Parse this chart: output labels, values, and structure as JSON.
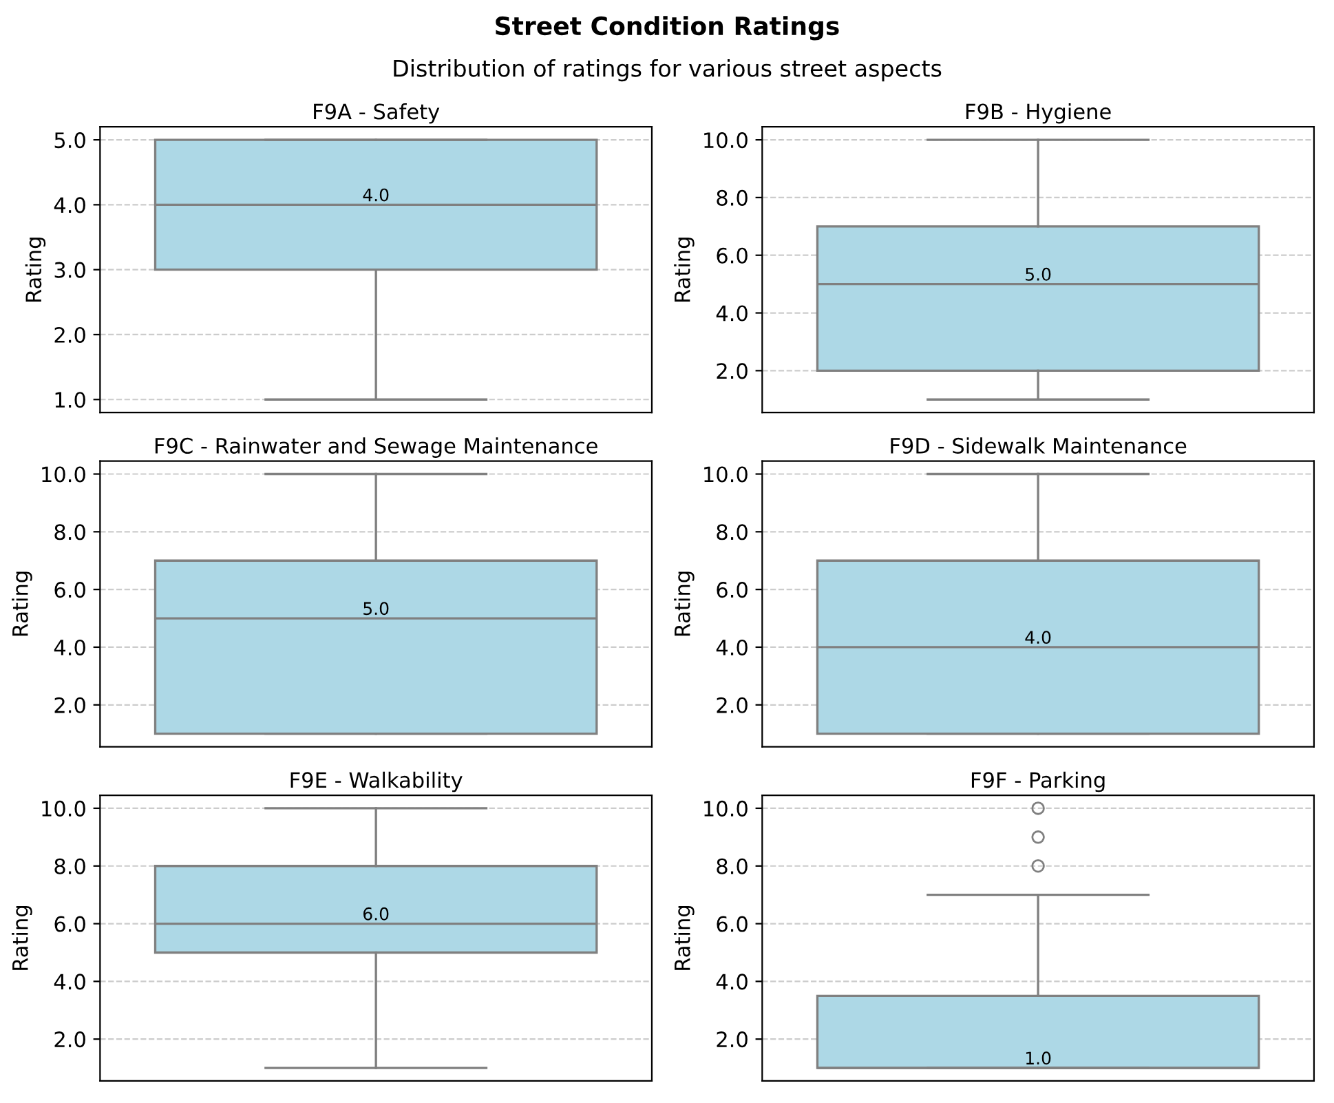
{
  "chart_data": [
    {
      "type": "box",
      "title": "F9A - Safety",
      "ylabel": "Rating",
      "categories": [
        null
      ],
      "color": "#add8e6",
      "boxes": [
        {
          "low": 1,
          "q1": 3,
          "median": 4,
          "q3": 5,
          "high": 5
        }
      ],
      "ylim": [
        0.8,
        5.2
      ],
      "yticks": [
        {
          "value": 1,
          "label": "1.0"
        },
        {
          "value": 2,
          "label": "2.0"
        },
        {
          "value": 3,
          "label": "3.0"
        },
        {
          "value": 4,
          "label": "4.0"
        },
        {
          "value": 5,
          "label": "5.0"
        }
      ],
      "grid": "y",
      "tick_labels": "y",
      "annotations": [
        {
          "text": "4.0",
          "y": 4
        }
      ]
    },
    {
      "type": "box",
      "title": "F9C - Rainwater and Sewage Maintenance",
      "ylabel": "Rating",
      "categories": [
        null
      ],
      "color": "#add8e6",
      "boxes": [
        {
          "low": 1,
          "q1": 1,
          "median": 5,
          "q3": 7,
          "high": 10
        }
      ],
      "ylim": [
        0.55,
        10.45
      ],
      "yticks": [
        {
          "value": 2,
          "label": "2.0"
        },
        {
          "value": 4,
          "label": "4.0"
        },
        {
          "value": 6,
          "label": "6.0"
        },
        {
          "value": 8,
          "label": "8.0"
        },
        {
          "value": 10,
          "label": "10.0"
        }
      ],
      "grid": "y",
      "tick_labels": "y",
      "annotations": [
        {
          "text": "5.0",
          "y": 5
        }
      ]
    },
    {
      "type": "box",
      "title": "F9E - Walkability",
      "ylabel": "Rating",
      "categories": [
        null
      ],
      "color": "#add8e6",
      "boxes": [
        {
          "low": 1,
          "q1": 5,
          "median": 6,
          "q3": 8,
          "high": 10
        }
      ],
      "ylim": [
        0.55,
        10.45
      ],
      "yticks": [
        {
          "value": 2,
          "label": "2.0"
        },
        {
          "value": 4,
          "label": "4.0"
        },
        {
          "value": 6,
          "label": "6.0"
        },
        {
          "value": 8,
          "label": "8.0"
        },
        {
          "value": 10,
          "label": "10.0"
        }
      ],
      "grid": "y",
      "tick_labels": "y",
      "annotations": [
        "6.0"
      ]
    },
    {
      "type": "box",
      "title": "F9B - Hygiene",
      "ylabel": "Rating",
      "categories": [
        null
      ],
      "color": "#add8e6",
      "boxes": [
        {
          "low": 1,
          "q1": 2,
          "median": 5,
          "q3": 7,
          "high": 10
        }
      ],
      "ylim": [
        0.55,
        10.45
      ],
      "yticks": [
        {
          "value": 2,
          "label": "2.0"
        },
        {
          "value": 4,
          "label": "4.0"
        },
        {
          "value": 6,
          "label": "6.0"
        },
        {
          "value": 8,
          "label": "8.0"
        },
        {
          "value": 10,
          "label": "10.0"
        }
      ],
      "grid": "y",
      "tick_labels": "y",
      "annotations": [
        {
          "text": "5.0",
          "y": 5
        }
      ]
    },
    {
      "type": "box",
      "title": "F9D - Sidewalk Maintenance",
      "ylabel": "Rating",
      "categories": [
        null
      ],
      "color": "#add8e6",
      "boxes": [
        {
          "low": 1,
          "q1": 1,
          "median": 4,
          "q3": 7,
          "high": 10
        }
      ],
      "ylim": [
        0.55,
        10.45
      ],
      "yticks": [
        {
          "value": 2,
          "label": "2.0"
        },
        {
          "value": 4,
          "label": "4.0"
        },
        {
          "value": 6,
          "label": "6.0"
        },
        {
          "value": 8,
          "label": "8.0"
        },
        {
          "value": 10,
          "label": "10.0"
        }
      ],
      "grid": "y",
      "tick_labels": "y",
      "annotations": [
        {
          "text": "4.0",
          "y": 4
        }
      ]
    },
    {
      "type": "box",
      "title": "F9F - Parking",
      "ylabel": "Rating",
      "categories": [
        null
      ],
      "color": "#add8e6",
      "boxes": [
        {
          "low": 1,
          "q1": 1,
          "median": 1,
          "q3": 3.5,
          "high": 7,
          "outliers": [
            8,
            9,
            10
          ]
        }
      ],
      "ylim": [
        0.55,
        10.45
      ],
      "yticks": [
        {
          "value": 2,
          "label": "2.0"
        },
        {
          "value": 4,
          "label": "4.0"
        },
        {
          "value": 6,
          "label": "6.0"
        },
        {
          "value": 8,
          "label": "8.0"
        },
        {
          "value": 10,
          "label": "10.0"
        }
      ],
      "grid": "y",
      "tick_labels": "y",
      "annotations": [
        {
          "text": "1.0",
          "y": 1
        }
      ]
    },
    {
      "type": "other",
      "title": "Street Condition Ratings",
      "subtitle": "Distribution of ratings for various street aspects"
    }
  ]
}
